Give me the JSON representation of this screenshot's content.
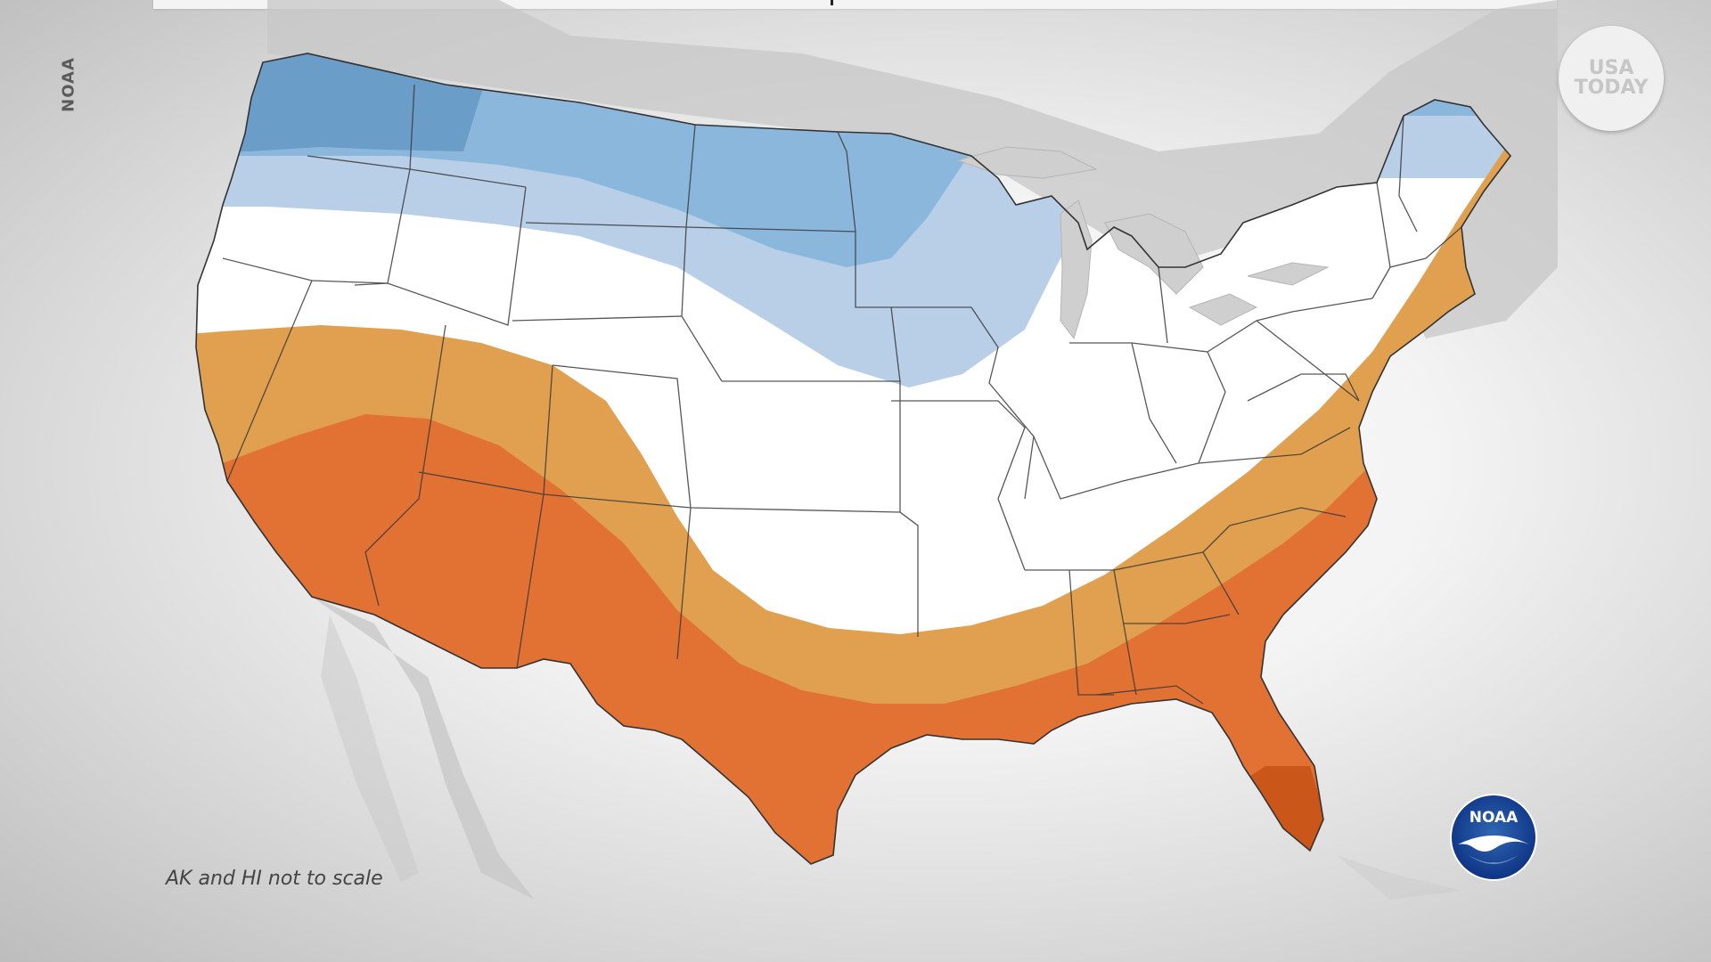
{
  "map": {
    "credit": "NOAA",
    "footnote": "AK and HI not to scale",
    "publisher_logo": {
      "line1": "USA",
      "line2": "TODAY"
    },
    "agency_logo": {
      "text": "NOAA"
    },
    "legend_colors": {
      "below_normal_dark": "#6b9dc9",
      "below_normal_medium": "#8bb7dd",
      "below_normal_light": "#b8cfe7",
      "equal_chances": "#ffffff",
      "above_normal_light": "#e0a04f",
      "above_normal_medium": "#e27134",
      "above_normal_dark": "#c85416"
    }
  }
}
